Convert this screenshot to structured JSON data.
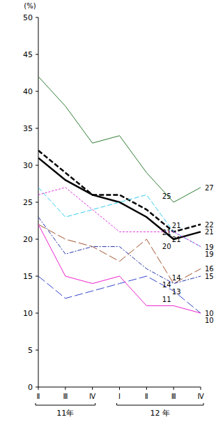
{
  "chart_data": {
    "type": "line",
    "y_label": "(%)",
    "categories": [
      "Ⅱ",
      "Ⅲ",
      "Ⅳ",
      "Ⅰ",
      "Ⅱ",
      "Ⅲ",
      "Ⅳ"
    ],
    "groups": [
      {
        "label": "11年",
        "from": 0,
        "to": 2
      },
      {
        "label": "12 年",
        "from": 3,
        "to": 6
      }
    ],
    "ylim": [
      0,
      50
    ],
    "yticks": [
      0,
      5,
      10,
      15,
      20,
      25,
      30,
      35,
      40,
      45,
      50
    ],
    "grid": false,
    "series": [
      {
        "color": "#2e7d32",
        "line_style": "solid",
        "values": [
          42,
          38,
          33,
          34,
          29,
          25,
          27
        ],
        "value_labels": [
          null,
          null,
          null,
          null,
          null,
          "25",
          "27"
        ]
      },
      {
        "color": "#000000",
        "line_style": "dashed",
        "values": [
          32,
          29,
          26,
          26,
          24,
          21,
          22
        ],
        "value_labels": [
          null,
          null,
          null,
          null,
          null,
          "21",
          "22"
        ]
      },
      {
        "color": "#000000",
        "line_style": "solid",
        "values": [
          31,
          28,
          26,
          25,
          23,
          20,
          21
        ],
        "value_labels": [
          null,
          null,
          null,
          null,
          null,
          "20",
          "21"
        ]
      },
      {
        "color": "#33ccee",
        "line_style": "dashed",
        "values": [
          27,
          23,
          24,
          25,
          26,
          21,
          19
        ],
        "value_labels": [
          null,
          null,
          null,
          null,
          null,
          "21",
          "19"
        ]
      },
      {
        "color": "#dd33dd",
        "line_style": "dotted",
        "values": [
          26,
          27,
          24,
          21,
          21,
          21,
          19
        ],
        "value_labels": [
          null,
          null,
          null,
          null,
          null,
          "21",
          "19"
        ]
      },
      {
        "color": "#a0522d",
        "line_style": "longdash",
        "values": [
          22,
          20,
          19,
          17,
          20,
          14,
          16
        ],
        "value_labels": [
          null,
          null,
          null,
          null,
          null,
          "14",
          "16"
        ]
      },
      {
        "color": "#2233aa",
        "line_style": "dashdot",
        "values": [
          23,
          18,
          19,
          19,
          16,
          14,
          15
        ],
        "value_labels": [
          null,
          null,
          null,
          null,
          null,
          "14",
          "15"
        ]
      },
      {
        "color": "#3344cc",
        "line_style": "longdash",
        "values": [
          15,
          12,
          13,
          14,
          15,
          13,
          10
        ],
        "value_labels": [
          null,
          null,
          null,
          null,
          null,
          "13",
          "10"
        ]
      },
      {
        "color": "#ee22cc",
        "line_style": "solid",
        "values": [
          22,
          15,
          14,
          15,
          11,
          11,
          10
        ],
        "value_labels": [
          null,
          null,
          null,
          null,
          null,
          "11",
          "10"
        ]
      }
    ]
  }
}
